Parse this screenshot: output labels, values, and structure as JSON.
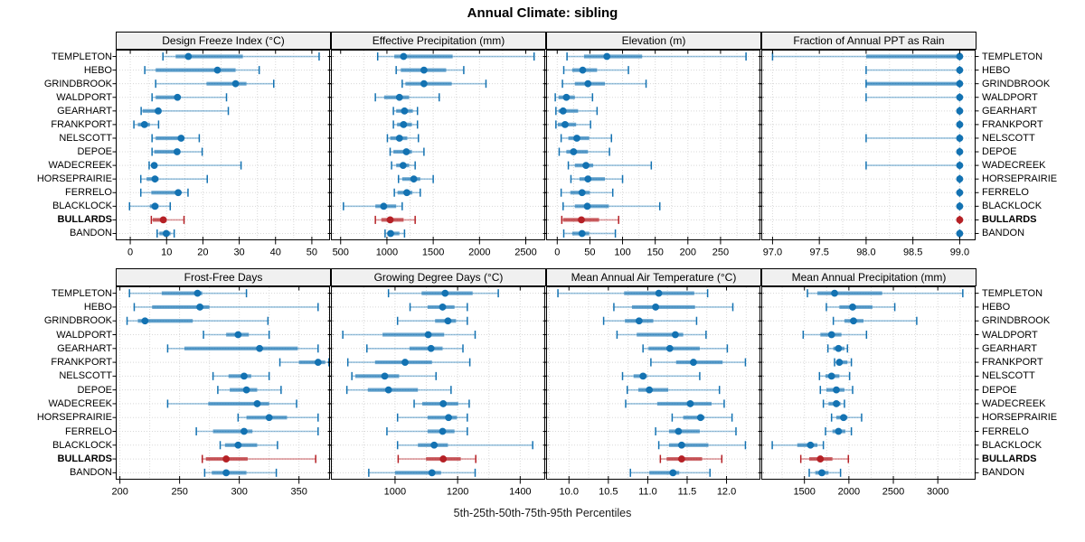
{
  "title": "Annual Climate: sibling",
  "caption": "5th-25th-50th-75th-95th Percentiles",
  "stations": [
    {
      "name": "TEMPLETON",
      "highlight": false
    },
    {
      "name": "HEBO",
      "highlight": false
    },
    {
      "name": "GRINDBROOK",
      "highlight": false
    },
    {
      "name": "WALDPORT",
      "highlight": false
    },
    {
      "name": "GEARHART",
      "highlight": false
    },
    {
      "name": "FRANKPORT",
      "highlight": false
    },
    {
      "name": "NELSCOTT",
      "highlight": false
    },
    {
      "name": "DEPOE",
      "highlight": false
    },
    {
      "name": "WADECREEK",
      "highlight": false
    },
    {
      "name": "HORSEPRAIRIE",
      "highlight": false
    },
    {
      "name": "FERRELO",
      "highlight": false
    },
    {
      "name": "BLACKLOCK",
      "highlight": false
    },
    {
      "name": "BULLARDS",
      "highlight": true
    },
    {
      "name": "BANDON",
      "highlight": false
    }
  ],
  "colors": {
    "blue_main": "#1372b2",
    "blue_band": "rgba(19,114,178,0.60)",
    "blue_whisker": "rgba(19,114,178,0.42)",
    "red_main": "#b52025",
    "red_band": "rgba(181,32,37,0.65)",
    "red_whisker": "rgba(181,32,37,0.45)",
    "grid": "#d8d8d8",
    "strip_bg": "#f0f0f0",
    "border": "#000000"
  },
  "chart_data": {
    "type": "dotplot-intervals",
    "percentiles": [
      5,
      25,
      50,
      75,
      95
    ],
    "highlight_station": "BULLARDS",
    "legend_position": "none",
    "grid": "dotted, minor at half-tick spacing; dotted horizontal line per station row",
    "stations_order_top_to_bottom": [
      "TEMPLETON",
      "HEBO",
      "GRINDBROOK",
      "WALDPORT",
      "GEARHART",
      "FRANKPORT",
      "NELSCOTT",
      "DEPOE",
      "WADECREEK",
      "HORSEPRAIRIE",
      "FERRELO",
      "BLACKLOCK",
      "BULLARDS",
      "BANDON"
    ],
    "panels": [
      {
        "title": "Design Freeze Index (°C)",
        "row": 0,
        "col": 0,
        "ticks": [
          0,
          10,
          20,
          30,
          40,
          50
        ],
        "tick_labels": [
          "0",
          "10",
          "20",
          "30",
          "40",
          "50"
        ],
        "xlim": [
          -4,
          55
        ],
        "values": [
          [
            9,
            12.5,
            16,
            31,
            52
          ],
          [
            4,
            7,
            24,
            29,
            35.5
          ],
          [
            7,
            21,
            29,
            32,
            39.5
          ],
          [
            6,
            7,
            13,
            13.7,
            26.5
          ],
          [
            3,
            3.4,
            7.7,
            8.5,
            27
          ],
          [
            1,
            2.1,
            3.9,
            5.4,
            7.8
          ],
          [
            6,
            7,
            14,
            14.8,
            19
          ],
          [
            6,
            6.6,
            12.9,
            13.4,
            19.8
          ],
          [
            5.2,
            5.8,
            6.6,
            7.4,
            30.5
          ],
          [
            2.9,
            4.5,
            6.8,
            7.8,
            21.2
          ],
          [
            2.9,
            5.8,
            13.2,
            13.6,
            15.9
          ],
          [
            -0.2,
            5.4,
            6.8,
            7.8,
            11
          ],
          [
            5.8,
            6.2,
            9.1,
            9.9,
            14.8
          ],
          [
            7.4,
            8,
            9.9,
            11.1,
            12.1
          ]
        ]
      },
      {
        "title": "Effective Precipitation (mm)",
        "row": 0,
        "col": 1,
        "ticks": [
          500,
          1000,
          1500,
          2000,
          2500
        ],
        "tick_labels": [
          "500",
          "1000",
          "1500",
          "2000",
          "2500"
        ],
        "xlim": [
          395,
          2710
        ],
        "values": [
          [
            900,
            1080,
            1180,
            1710,
            2590
          ],
          [
            1100,
            1150,
            1400,
            1640,
            1830
          ],
          [
            1165,
            1200,
            1400,
            1700,
            2070
          ],
          [
            875,
            970,
            1135,
            1240,
            1565
          ],
          [
            1070,
            1100,
            1190,
            1280,
            1330
          ],
          [
            1070,
            1110,
            1180,
            1270,
            1330
          ],
          [
            1005,
            1035,
            1135,
            1220,
            1340
          ],
          [
            1035,
            1070,
            1210,
            1270,
            1400
          ],
          [
            1050,
            1100,
            1175,
            1240,
            1305
          ],
          [
            1125,
            1165,
            1290,
            1360,
            1500
          ],
          [
            1080,
            1115,
            1215,
            1275,
            1360
          ],
          [
            530,
            875,
            965,
            1100,
            1165
          ],
          [
            875,
            940,
            1035,
            1180,
            1305
          ],
          [
            980,
            1005,
            1040,
            1135,
            1190
          ]
        ]
      },
      {
        "title": "Elevation (m)",
        "row": 0,
        "col": 2,
        "ticks": [
          0,
          50,
          100,
          150,
          200,
          250
        ],
        "tick_labels": [
          "0",
          "50",
          "100",
          "150",
          "200",
          "250"
        ],
        "xlim": [
          -17,
          311
        ],
        "values": [
          [
            15,
            41,
            76,
            130,
            289
          ],
          [
            10,
            23,
            39,
            61,
            109
          ],
          [
            8,
            27,
            47,
            73,
            136
          ],
          [
            -3,
            2,
            14,
            27,
            54
          ],
          [
            -2,
            2,
            9,
            32,
            61
          ],
          [
            -2,
            1,
            12,
            29,
            51
          ],
          [
            6,
            17,
            30,
            49,
            83
          ],
          [
            3,
            14,
            25,
            47,
            80
          ],
          [
            17,
            27,
            44,
            55,
            144
          ],
          [
            21,
            34,
            47,
            73,
            100
          ],
          [
            6,
            20,
            38,
            50,
            85
          ],
          [
            9,
            27,
            46,
            79,
            157
          ],
          [
            7,
            9,
            37,
            64,
            94
          ],
          [
            10,
            23,
            38,
            49,
            89
          ]
        ]
      },
      {
        "title": "Fraction of Annual PPT as Rain",
        "row": 0,
        "col": 3,
        "ticks": [
          97.0,
          97.5,
          98.0,
          98.5,
          99.0
        ],
        "tick_labels": [
          "97.0",
          "97.5",
          "98.0",
          "98.5",
          "99.0"
        ],
        "xlim": [
          96.88,
          99.17
        ],
        "values": [
          [
            97,
            98,
            99,
            99,
            99
          ],
          [
            98,
            99,
            99,
            99,
            99
          ],
          [
            98,
            98,
            99,
            99,
            99
          ],
          [
            98,
            99,
            99,
            99,
            99
          ],
          [
            99,
            99,
            99,
            99,
            99
          ],
          [
            99,
            99,
            99,
            99,
            99
          ],
          [
            98,
            99,
            99,
            99,
            99
          ],
          [
            99,
            99,
            99,
            99,
            99
          ],
          [
            98,
            99,
            99,
            99,
            99
          ],
          [
            99,
            99,
            99,
            99,
            99
          ],
          [
            99,
            99,
            99,
            99,
            99
          ],
          [
            99,
            99,
            99,
            99,
            99
          ],
          [
            99,
            99,
            99,
            99,
            99
          ],
          [
            99,
            99,
            99,
            99,
            99
          ]
        ]
      },
      {
        "title": "Frost-Free Days",
        "row": 1,
        "col": 0,
        "ticks": [
          200,
          250,
          300,
          350
        ],
        "tick_labels": [
          "200",
          "250",
          "300",
          "350"
        ],
        "xlim": [
          196.5,
          376
        ],
        "values": [
          [
            208,
            235,
            265,
            269,
            306
          ],
          [
            212,
            227,
            267,
            275,
            366
          ],
          [
            206,
            215,
            221,
            261,
            324
          ],
          [
            270,
            289,
            299,
            308,
            325
          ],
          [
            240,
            254,
            317,
            349,
            366
          ],
          [
            334,
            350,
            366,
            372,
            375
          ],
          [
            278,
            291,
            304,
            310,
            325
          ],
          [
            282,
            292,
            306,
            315,
            335
          ],
          [
            240,
            274,
            315,
            325,
            348
          ],
          [
            299,
            306,
            325,
            340,
            366
          ],
          [
            264,
            278,
            304,
            311,
            366
          ],
          [
            284,
            288,
            299,
            315,
            332
          ],
          [
            269,
            272,
            289,
            307,
            364
          ],
          [
            271,
            277,
            289,
            306,
            331
          ]
        ]
      },
      {
        "title": "Growing Degree Days (°C)",
        "row": 1,
        "col": 1,
        "ticks": [
          1000,
          1200,
          1400
        ],
        "tick_labels": [
          "1000",
          "1200",
          "1400"
        ],
        "xlim": [
          795,
          1480
        ],
        "values": [
          [
            979,
            1085,
            1160,
            1248,
            1330
          ],
          [
            1048,
            1104,
            1152,
            1190,
            1231
          ],
          [
            1008,
            1128,
            1169,
            1195,
            1231
          ],
          [
            833,
            960,
            1106,
            1157,
            1256
          ],
          [
            910,
            1046,
            1115,
            1152,
            1217
          ],
          [
            849,
            936,
            1032,
            1118,
            1239
          ],
          [
            862,
            873,
            967,
            1013,
            1131
          ],
          [
            846,
            913,
            979,
            1073,
            1179
          ],
          [
            1061,
            1087,
            1154,
            1202,
            1237
          ],
          [
            1008,
            1104,
            1171,
            1198,
            1231
          ],
          [
            974,
            1104,
            1152,
            1190,
            1231
          ],
          [
            1008,
            1073,
            1125,
            1169,
            1440
          ],
          [
            1010,
            1099,
            1154,
            1210,
            1258
          ],
          [
            916,
            1000,
            1118,
            1147,
            1256
          ]
        ]
      },
      {
        "title": "Mean Annual Air Temperature (°C)",
        "row": 1,
        "col": 2,
        "ticks": [
          10.0,
          10.5,
          11.0,
          11.5,
          12.0
        ],
        "tick_labels": [
          "10.0",
          "10.5",
          "11.0",
          "11.5",
          "12.0"
        ],
        "xlim": [
          9.71,
          12.43
        ],
        "values": [
          [
            9.86,
            10.7,
            11.14,
            11.59,
            11.76
          ],
          [
            10.57,
            10.8,
            11.1,
            11.6,
            12.08
          ],
          [
            10.44,
            10.71,
            10.89,
            11.07,
            11.62
          ],
          [
            10.61,
            10.86,
            11.35,
            11.45,
            11.74
          ],
          [
            10.94,
            11.01,
            11.28,
            11.66,
            12.01
          ],
          [
            11.04,
            11.36,
            11.58,
            11.95,
            12.24
          ],
          [
            10.68,
            10.82,
            10.94,
            10.99,
            11.66
          ],
          [
            10.74,
            10.88,
            11.02,
            11.26,
            11.91
          ],
          [
            10.72,
            11.12,
            11.54,
            11.81,
            11.97
          ],
          [
            11.31,
            11.45,
            11.67,
            11.72,
            12.07
          ],
          [
            11.1,
            11.27,
            11.39,
            11.66,
            12.12
          ],
          [
            11.14,
            11.27,
            11.43,
            11.77,
            12.24
          ],
          [
            11.16,
            11.24,
            11.43,
            11.69,
            11.94
          ],
          [
            10.78,
            11.02,
            11.32,
            11.4,
            11.79
          ]
        ]
      },
      {
        "title": "Mean Annual Precipitation (mm)",
        "row": 1,
        "col": 3,
        "ticks": [
          1500,
          2000,
          2500,
          3000
        ],
        "tick_labels": [
          "1500",
          "2000",
          "2500",
          "3000"
        ],
        "xlim": [
          1015,
          3425
        ],
        "values": [
          [
            1534,
            1646,
            1839,
            2374,
            3281
          ],
          [
            1747,
            1893,
            2042,
            2265,
            2516
          ],
          [
            1825,
            1950,
            2052,
            2164,
            2763
          ],
          [
            1486,
            1679,
            1805,
            1916,
            2198
          ],
          [
            1764,
            1825,
            1883,
            1950,
            1984
          ],
          [
            1839,
            1872,
            1893,
            1984,
            2028
          ],
          [
            1669,
            1737,
            1805,
            1893,
            2008
          ],
          [
            1679,
            1747,
            1859,
            1950,
            2042
          ],
          [
            1713,
            1771,
            1859,
            1906,
            1950
          ],
          [
            1805,
            1859,
            1940,
            1984,
            2143
          ],
          [
            1737,
            1815,
            1883,
            1960,
            2028
          ],
          [
            1138,
            1419,
            1568,
            1646,
            1713
          ],
          [
            1459,
            1554,
            1679,
            1815,
            1994
          ],
          [
            1554,
            1622,
            1696,
            1771,
            1906
          ]
        ]
      }
    ]
  }
}
